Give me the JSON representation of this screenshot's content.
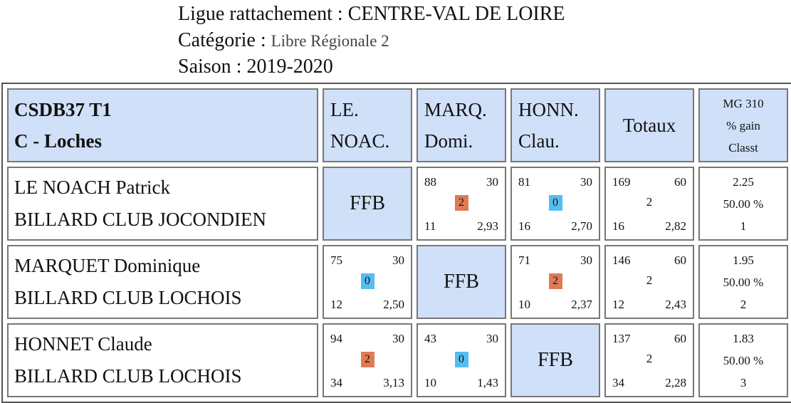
{
  "header": {
    "ligue_label": "Ligue rattachement : ",
    "ligue_value": "CENTRE-VAL DE LOIRE",
    "categorie_label": "Catégorie : ",
    "categorie_value": "Libre Régionale 2",
    "saison_label": "Saison : ",
    "saison_value": "2019-2020"
  },
  "table": {
    "club_line1": "CSDB37 T1",
    "club_line2": "C - Loches",
    "columns": [
      {
        "line1": "LE.",
        "line2": "NOAC."
      },
      {
        "line1": "MARQ.",
        "line2": "Domi."
      },
      {
        "line1": "HONN.",
        "line2": "Clau."
      }
    ],
    "totaux_label": "Totaux",
    "mg_label": "MG 310",
    "gain_label": "% gain",
    "classt_label": "Classt",
    "ffb_label": "FFB",
    "rows": [
      {
        "name": "LE NOACH Patrick",
        "club": "BILLARD CLUB JOCONDIEN",
        "cells": [
          null,
          {
            "points": "88",
            "distance": "30",
            "result": "2",
            "reprises": "11",
            "moyenne": "2,93"
          },
          {
            "points": "81",
            "distance": "30",
            "result": "0",
            "reprises": "16",
            "moyenne": "2,70"
          }
        ],
        "total": {
          "points": "169",
          "distance": "60",
          "result": "2",
          "reprises": "16",
          "moyenne": "2,82"
        },
        "mg": "2.25",
        "gain": "50.00 %",
        "classt": "1"
      },
      {
        "name": "MARQUET Dominique",
        "club": "BILLARD CLUB LOCHOIS",
        "cells": [
          {
            "points": "75",
            "distance": "30",
            "result": "0",
            "reprises": "12",
            "moyenne": "2,50"
          },
          null,
          {
            "points": "71",
            "distance": "30",
            "result": "2",
            "reprises": "10",
            "moyenne": "2,37"
          }
        ],
        "total": {
          "points": "146",
          "distance": "60",
          "result": "2",
          "reprises": "12",
          "moyenne": "2,43"
        },
        "mg": "1.95",
        "gain": "50.00 %",
        "classt": "2"
      },
      {
        "name": "HONNET Claude",
        "club": "BILLARD CLUB LOCHOIS",
        "cells": [
          {
            "points": "94",
            "distance": "30",
            "result": "2",
            "reprises": "34",
            "moyenne": "3,13"
          },
          {
            "points": "43",
            "distance": "30",
            "result": "0",
            "reprises": "10",
            "moyenne": "1,43"
          },
          null
        ],
        "total": {
          "points": "137",
          "distance": "60",
          "result": "2",
          "reprises": "34",
          "moyenne": "2,28"
        },
        "mg": "1.83",
        "gain": "50.00 %",
        "classt": "3"
      }
    ]
  },
  "colors": {
    "header_bg": "#cfe0f8",
    "win_badge": "#e07a55",
    "loss_badge": "#55bdf0"
  }
}
